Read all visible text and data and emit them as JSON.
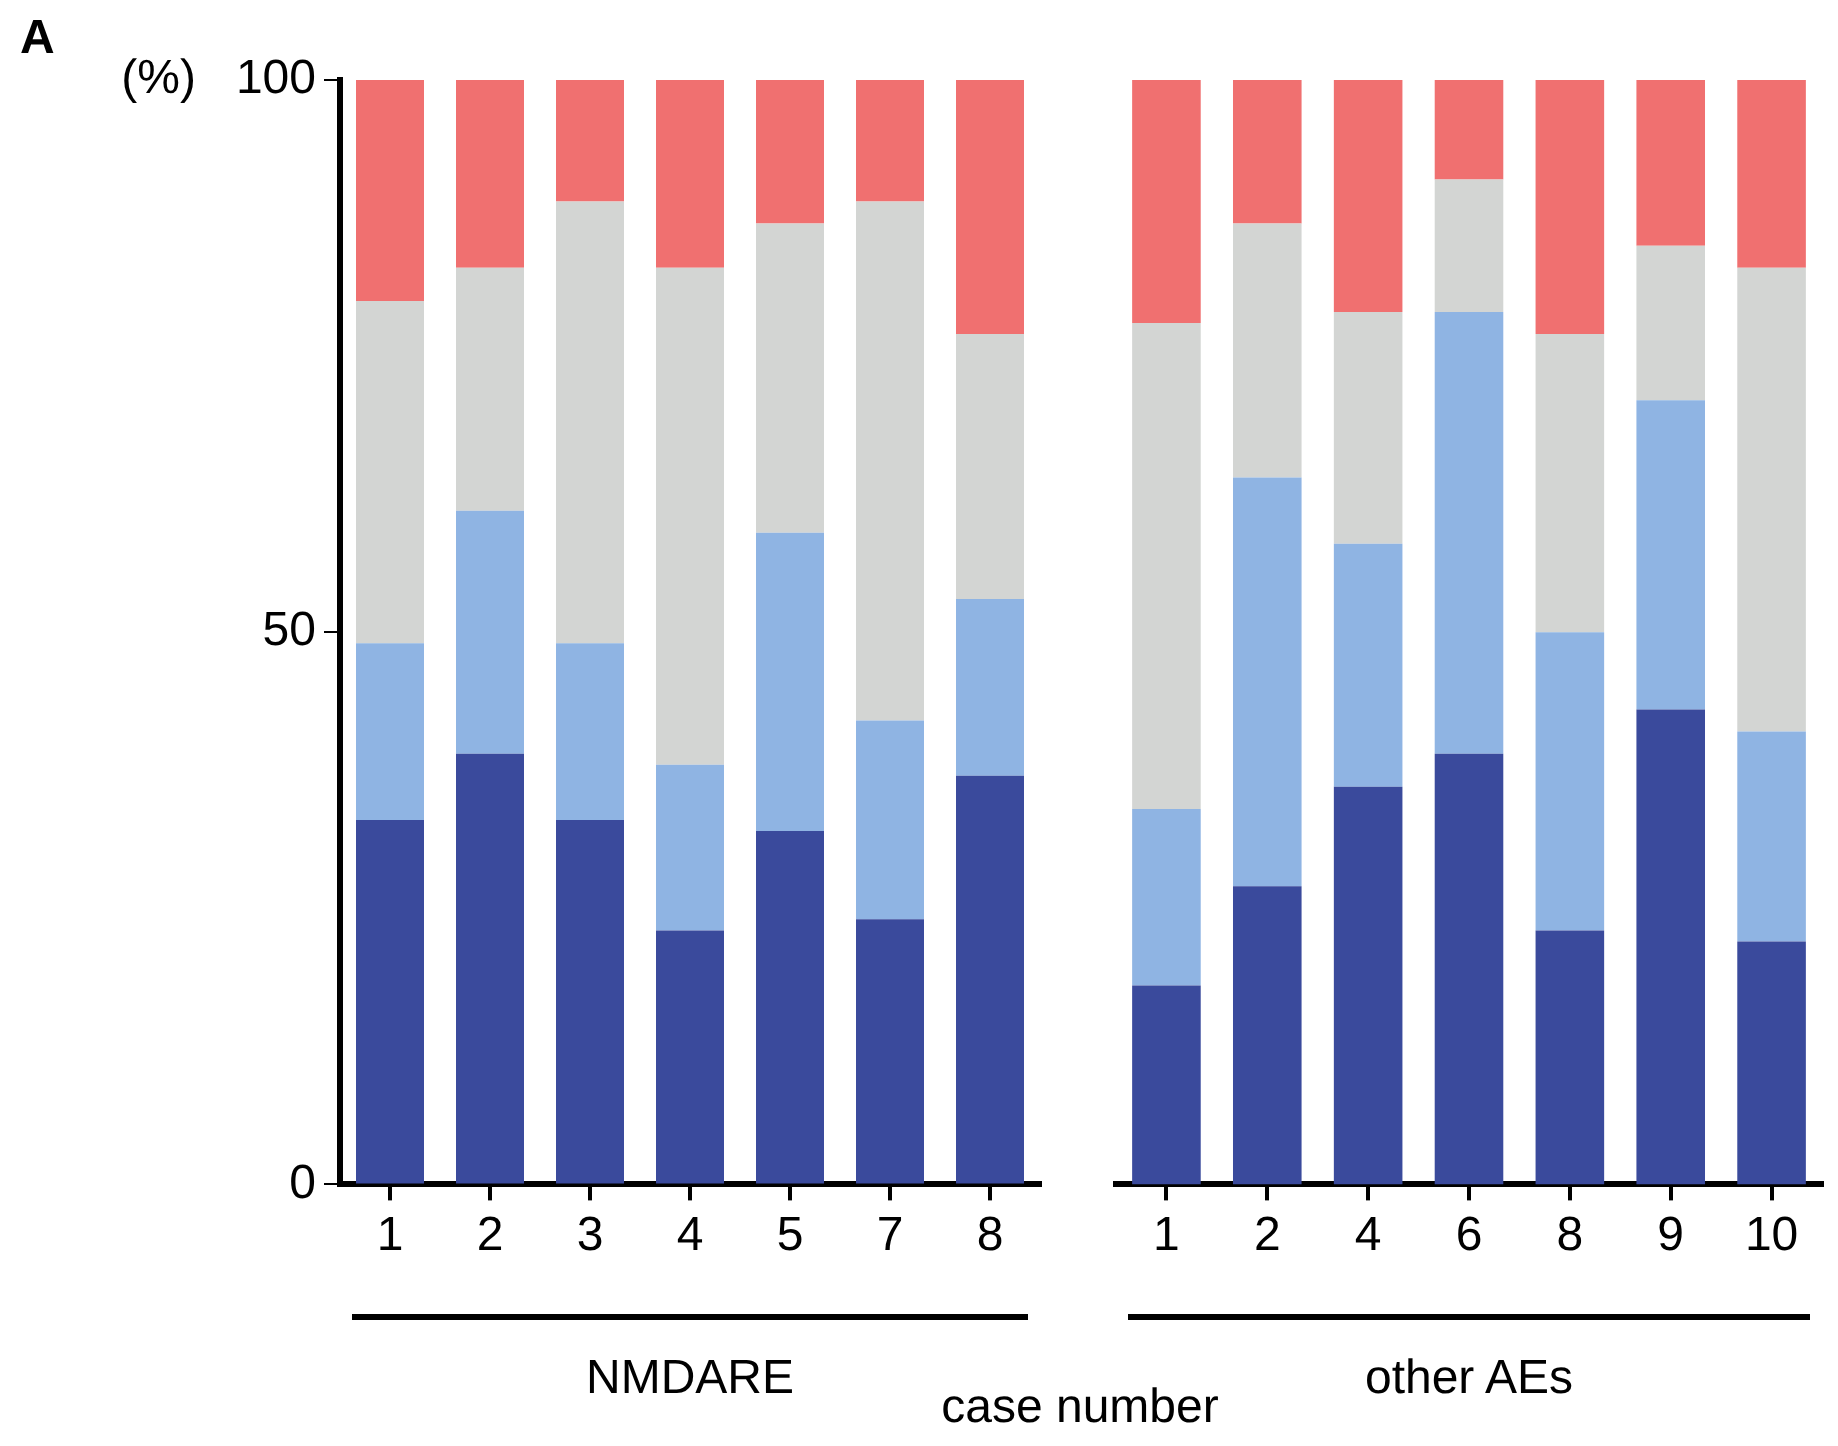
{
  "chart_data": [
    {
      "type": "bar",
      "title": "A",
      "ylabel": "(%)",
      "xlabel": "NMDARE",
      "annotations": [
        "case number"
      ],
      "stacked": true,
      "grid": false,
      "ylim": [
        0,
        100
      ],
      "yticks": [
        0,
        50,
        100
      ],
      "categories": [
        "1",
        "2",
        "3",
        "4",
        "5",
        "7",
        "8"
      ],
      "series": [
        {
          "color": "#3a4a9c",
          "values": [
            33,
            39,
            33,
            23,
            32,
            24,
            37
          ]
        },
        {
          "color": "#8fb4e3",
          "values": [
            16,
            22,
            16,
            15,
            27,
            18,
            16
          ]
        },
        {
          "color": "#d3d5d3",
          "values": [
            31,
            22,
            40,
            45,
            28,
            47,
            24
          ]
        },
        {
          "color": "#f07070",
          "values": [
            20,
            17,
            11,
            17,
            13,
            11,
            23
          ]
        }
      ]
    },
    {
      "type": "bar",
      "xlabel": "other AEs",
      "stacked": true,
      "grid": false,
      "tick_labels": "x",
      "ylim": [
        0,
        100
      ],
      "yticks": [
        0,
        50,
        100
      ],
      "categories": [
        "1",
        "2",
        "4",
        "6",
        "8",
        "9",
        "10"
      ],
      "series": [
        {
          "color": "#3a4a9c",
          "values": [
            18,
            27,
            36,
            39,
            23,
            43,
            22
          ]
        },
        {
          "color": "#8fb4e3",
          "values": [
            16,
            37,
            22,
            40,
            27,
            28,
            19
          ]
        },
        {
          "color": "#d3d5d3",
          "values": [
            44,
            23,
            21,
            12,
            27,
            14,
            42
          ]
        },
        {
          "color": "#f07070",
          "values": [
            22,
            13,
            21,
            9,
            23,
            15,
            17
          ]
        }
      ]
    }
  ]
}
